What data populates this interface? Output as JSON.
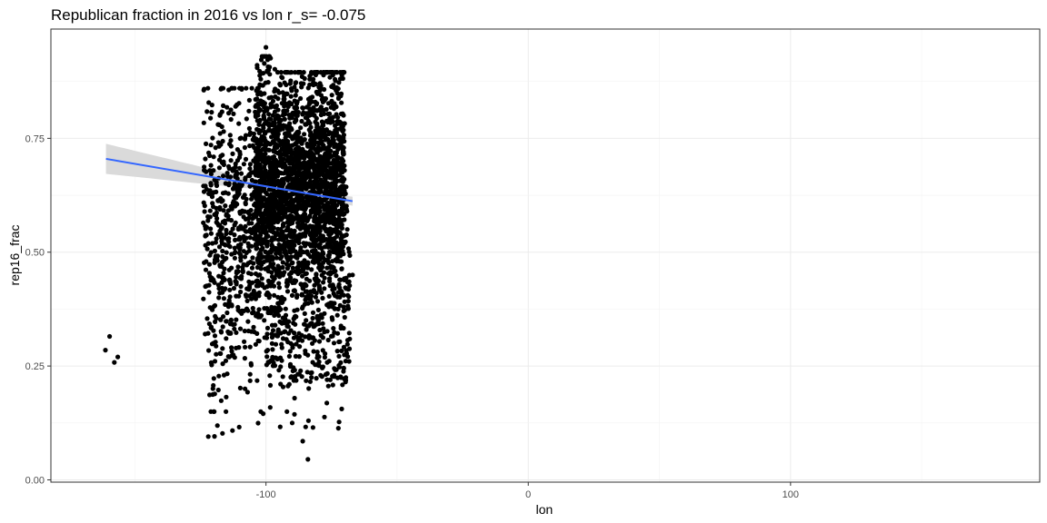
{
  "chart_data": {
    "type": "scatter",
    "title": "Republican fraction in 2016 vs lon  r_s= -0.075",
    "xlabel": "lon",
    "ylabel": "rep16_frac",
    "xlim": [
      -182,
      195
    ],
    "ylim": [
      -0.005,
      0.99
    ],
    "x_ticks": [
      -100,
      0,
      100
    ],
    "x_tick_labels": [
      "-100",
      "0",
      "100"
    ],
    "y_ticks": [
      0.0,
      0.25,
      0.5,
      0.75
    ],
    "y_tick_labels": [
      "0.00",
      "0.25",
      "0.50",
      "0.75"
    ],
    "grid": true,
    "theme": "white background with light gray gridlines and dark panel border",
    "series": [
      {
        "kind": "points",
        "color": "#000000",
        "note_points": "approx. 3100 county-level points; dense cloud between lon -125 and -67",
        "points_sample": [
          [
            -159.6,
            0.315
          ],
          [
            -161.2,
            0.285
          ],
          [
            -156.5,
            0.27
          ],
          [
            -157.8,
            0.258
          ],
          [
            -122.0,
            0.095
          ],
          [
            -121.0,
            0.15
          ],
          [
            -120.0,
            0.3
          ],
          [
            -118.0,
            0.4
          ],
          [
            -116.0,
            0.23
          ],
          [
            -114.0,
            0.27
          ],
          [
            -112.0,
            0.65
          ],
          [
            -110.0,
            0.72
          ],
          [
            -108.0,
            0.2
          ],
          [
            -106.0,
            0.55
          ],
          [
            -104.0,
            0.82
          ],
          [
            -102.0,
            0.88
          ],
          [
            -100.0,
            0.95
          ],
          [
            -99.0,
            0.9
          ],
          [
            -98.0,
            0.78
          ],
          [
            -97.0,
            0.6
          ],
          [
            -96.0,
            0.45
          ],
          [
            -95.0,
            0.85
          ],
          [
            -94.0,
            0.7
          ],
          [
            -93.0,
            0.5
          ],
          [
            -92.0,
            0.15
          ],
          [
            -90.0,
            0.125
          ],
          [
            -88.0,
            0.8
          ],
          [
            -86.0,
            0.65
          ],
          [
            -84.0,
            0.55
          ],
          [
            -82.0,
            0.88
          ],
          [
            -80.0,
            0.35
          ],
          [
            -78.0,
            0.6
          ],
          [
            -76.0,
            0.38
          ],
          [
            -74.0,
            0.23
          ],
          [
            -72.0,
            0.48
          ],
          [
            -70.0,
            0.52
          ],
          [
            -69.0,
            0.55
          ],
          [
            -67.0,
            0.45
          ],
          [
            -84.0,
            0.045
          ],
          [
            -86.0,
            0.085
          ]
        ]
      },
      {
        "kind": "trend",
        "method": "linear fit with 95% confidence band",
        "color": "#3366ff",
        "band_color": "#d3d3d3",
        "x": [
          -161.0,
          -67.0
        ],
        "y": [
          0.705,
          0.612
        ],
        "band_lower": [
          0.672,
          0.602
        ],
        "band_upper": [
          0.738,
          0.622
        ]
      }
    ]
  }
}
